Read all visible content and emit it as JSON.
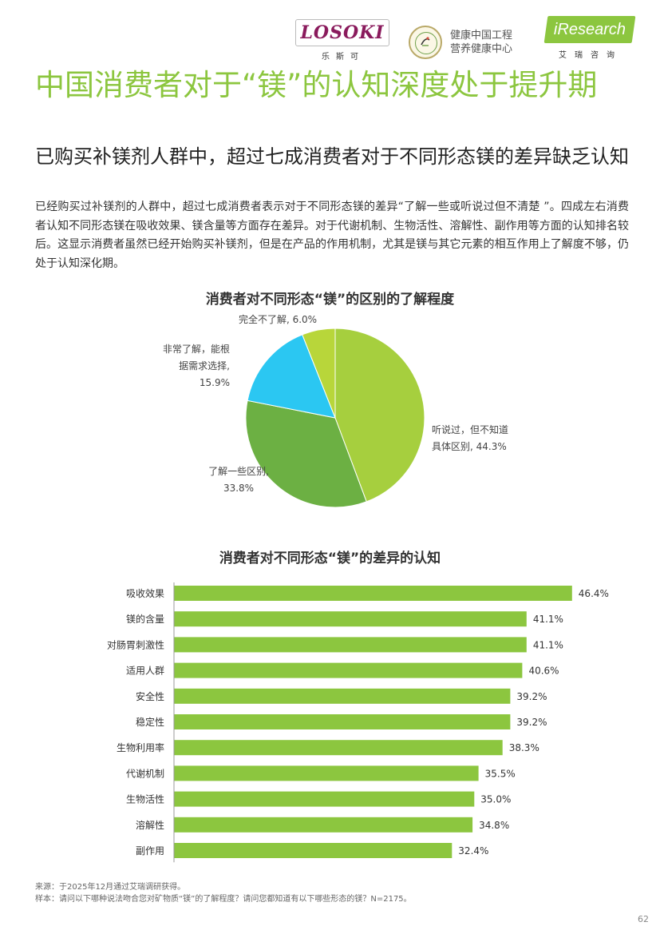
{
  "header": {
    "losoki_word": "LOSOKI",
    "losoki_cn": "乐斯可",
    "health_line1": "健康中国工程",
    "health_line2": "营养健康中心",
    "iresearch_i": "i",
    "iresearch_word": "Research",
    "iresearch_cn": "艾瑞咨询"
  },
  "title": "中国消费者对于“镁”的认知深度处于提升期",
  "subtitle": "已购买补镁剂人群中，超过七成消费者对于不同形态镁的差异缺乏认知",
  "intro": "已经购买过补镁剂的人群中，超过七成消费者表示对于不同形态镁的差异“了解一些或听说过但不清楚 ”。四成左右消费者认知不同形态镁在吸收效果、镁含量等方面存在差异。对于代谢机制、生物活性、溶解性、副作用等方面的认知排名较后。这显示消费者虽然已经开始购买补镁剂，但是在产品的作用机制，尤其是镁与其它元素的相互作用上了解度不够，仍处于认知深化期。",
  "chart_data": [
    {
      "type": "pie",
      "title": "消费者对不同形态“镁”的区别的了解程度",
      "slices": [
        {
          "label": "听说过，但不知道具体区别",
          "value": 44.3,
          "display": "44.3%",
          "color": "#a6cf3e",
          "label_lines": [
            "听说过，但不知道",
            "具体区别, 44.3%"
          ]
        },
        {
          "label": "了解一些区别",
          "value": 33.8,
          "display": "33.8%",
          "color": "#6cb043",
          "label_lines": [
            "了解一些区别,",
            "33.8%"
          ]
        },
        {
          "label": "非常了解，能根据需求选择",
          "value": 15.9,
          "display": "15.9%",
          "color": "#2bc7f2",
          "label_lines": [
            "非常了解，能根",
            "据需求选择,",
            "15.9%"
          ]
        },
        {
          "label": "完全不了解",
          "value": 6.0,
          "display": "6.0%",
          "color": "#b8d63a",
          "label_lines": [
            "完全不了解, 6.0%"
          ]
        }
      ]
    },
    {
      "type": "bar",
      "orientation": "horizontal",
      "title": "消费者对不同形态“镁”的差异的认知",
      "categories": [
        "吸收效果",
        "镁的含量",
        "对肠胃刺激性",
        "适用人群",
        "安全性",
        "稳定性",
        "生物利用率",
        "代谢机制",
        "生物活性",
        "溶解性",
        "副作用"
      ],
      "values": [
        46.4,
        41.1,
        41.1,
        40.6,
        39.2,
        39.2,
        38.3,
        35.5,
        35.0,
        34.8,
        32.4
      ],
      "labels": [
        "46.4%",
        "41.1%",
        "41.1%",
        "40.6%",
        "39.2%",
        "39.2%",
        "38.3%",
        "35.5%",
        "35.0%",
        "34.8%",
        "32.4%"
      ],
      "xlim": [
        0,
        50
      ],
      "color": "#8cc63f",
      "grid": false
    }
  ],
  "footer": {
    "source": "来源：于2025年12月通过艾瑞调研获得。",
    "sample": "样本：请问以下哪种说法吻合您对矿物质“镁”的了解程度？请问您都知道有以下哪些形态的镁？N=2175。",
    "page": "62"
  }
}
